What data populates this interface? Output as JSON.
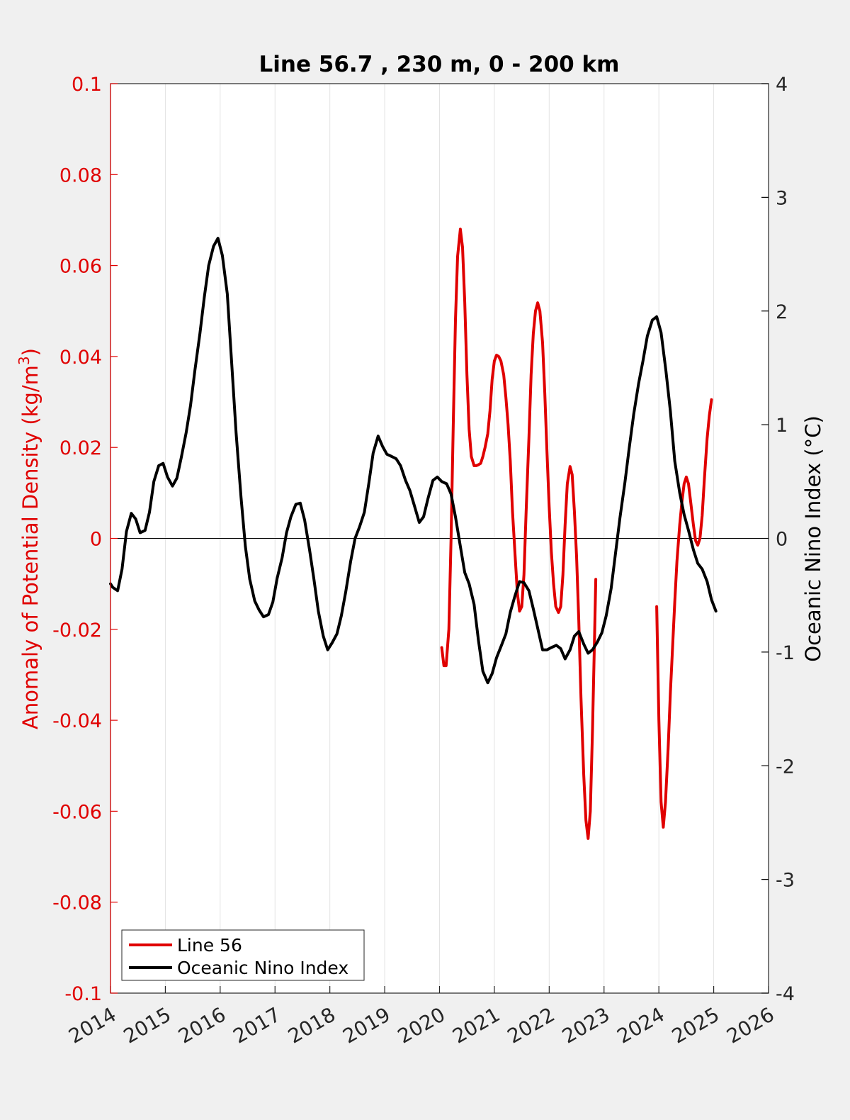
{
  "chart_data": {
    "type": "line",
    "title": "Line 56.7 , 230 m, 0 - 200 km",
    "xlabel": "",
    "ylabel_left": "Anomaly of Potential Density (kg/m",
    "ylabel_left_sup": "3",
    "ylabel_left_close": ")",
    "ylabel_right": "Oceanic Nino Index (°C)",
    "xlim": [
      2014,
      2026
    ],
    "ylim_left": [
      -0.1,
      0.1
    ],
    "ylim_right": [
      -4,
      4
    ],
    "x_ticks": [
      "2014",
      "2015",
      "2016",
      "2017",
      "2018",
      "2019",
      "2020",
      "2021",
      "2022",
      "2023",
      "2024",
      "2025",
      "2026"
    ],
    "y_left_ticks": [
      "-0.1",
      "-0.08",
      "-0.06",
      "-0.04",
      "-0.02",
      "0",
      "0.02",
      "0.04",
      "0.06",
      "0.08",
      "0.1"
    ],
    "y_right_ticks": [
      "-4",
      "-3",
      "-2",
      "-1",
      "0",
      "1",
      "2",
      "3",
      "4"
    ],
    "grid": "vertical",
    "zero_line": true,
    "legend_position": "bottom-left",
    "colors": {
      "line56": "#e00000",
      "oni": "#000000",
      "left_axis": "#e00000",
      "right_axis": "#000000"
    },
    "series": [
      {
        "name": "Line 56",
        "axis": "left",
        "color": "#e00000",
        "segments": [
          [
            [
              2020.04,
              -0.024
            ],
            [
              2020.08,
              -0.028
            ],
            [
              2020.12,
              -0.028
            ],
            [
              2020.17,
              -0.02
            ],
            [
              2020.21,
              0.0
            ],
            [
              2020.25,
              0.025
            ],
            [
              2020.29,
              0.048
            ],
            [
              2020.33,
              0.062
            ],
            [
              2020.38,
              0.068
            ],
            [
              2020.42,
              0.064
            ],
            [
              2020.46,
              0.052
            ],
            [
              2020.5,
              0.036
            ],
            [
              2020.54,
              0.024
            ],
            [
              2020.58,
              0.018
            ],
            [
              2020.63,
              0.016
            ],
            [
              2020.67,
              0.016
            ],
            [
              2020.71,
              0.0162
            ],
            [
              2020.75,
              0.0165
            ],
            [
              2020.79,
              0.018
            ],
            [
              2020.83,
              0.02
            ],
            [
              2020.88,
              0.023
            ],
            [
              2020.92,
              0.028
            ],
            [
              2020.96,
              0.035
            ],
            [
              2021.0,
              0.039
            ],
            [
              2021.04,
              0.0403
            ],
            [
              2021.08,
              0.04
            ],
            [
              2021.12,
              0.039
            ],
            [
              2021.17,
              0.036
            ],
            [
              2021.21,
              0.031
            ],
            [
              2021.25,
              0.025
            ],
            [
              2021.29,
              0.017
            ],
            [
              2021.33,
              0.006
            ],
            [
              2021.38,
              -0.004
            ],
            [
              2021.42,
              -0.012
            ],
            [
              2021.46,
              -0.016
            ],
            [
              2021.5,
              -0.015
            ],
            [
              2021.54,
              -0.008
            ],
            [
              2021.58,
              0.006
            ],
            [
              2021.63,
              0.022
            ],
            [
              2021.67,
              0.036
            ],
            [
              2021.71,
              0.045
            ],
            [
              2021.75,
              0.05
            ],
            [
              2021.79,
              0.0518
            ],
            [
              2021.83,
              0.05
            ],
            [
              2021.88,
              0.043
            ],
            [
              2021.92,
              0.032
            ],
            [
              2021.96,
              0.019
            ],
            [
              2022.0,
              0.007
            ],
            [
              2022.04,
              -0.003
            ],
            [
              2022.08,
              -0.01
            ],
            [
              2022.12,
              -0.015
            ],
            [
              2022.17,
              -0.0163
            ],
            [
              2022.21,
              -0.015
            ],
            [
              2022.25,
              -0.008
            ],
            [
              2022.29,
              0.003
            ],
            [
              2022.33,
              0.012
            ],
            [
              2022.38,
              0.0158
            ],
            [
              2022.42,
              0.014
            ],
            [
              2022.46,
              0.006
            ],
            [
              2022.5,
              -0.004
            ],
            [
              2022.54,
              -0.018
            ],
            [
              2022.58,
              -0.035
            ],
            [
              2022.63,
              -0.052
            ],
            [
              2022.67,
              -0.062
            ],
            [
              2022.71,
              -0.066
            ],
            [
              2022.75,
              -0.06
            ],
            [
              2022.79,
              -0.042
            ],
            [
              2022.83,
              -0.02
            ],
            [
              2022.85,
              -0.009
            ]
          ],
          [
            [
              2023.96,
              -0.015
            ],
            [
              2024.0,
              -0.04
            ],
            [
              2024.04,
              -0.058
            ],
            [
              2024.08,
              -0.0635
            ],
            [
              2024.12,
              -0.058
            ],
            [
              2024.17,
              -0.046
            ],
            [
              2024.21,
              -0.034
            ],
            [
              2024.25,
              -0.024
            ],
            [
              2024.29,
              -0.014
            ],
            [
              2024.33,
              -0.005
            ],
            [
              2024.38,
              0.003
            ],
            [
              2024.42,
              0.008
            ],
            [
              2024.46,
              0.012
            ],
            [
              2024.5,
              0.0135
            ],
            [
              2024.54,
              0.012
            ],
            [
              2024.58,
              0.008
            ],
            [
              2024.63,
              0.003
            ],
            [
              2024.67,
              -0.0005
            ],
            [
              2024.71,
              -0.0015
            ],
            [
              2024.75,
              0.0
            ],
            [
              2024.79,
              0.005
            ],
            [
              2024.83,
              0.013
            ],
            [
              2024.88,
              0.022
            ],
            [
              2024.92,
              0.027
            ],
            [
              2024.96,
              0.0305
            ]
          ]
        ]
      },
      {
        "name": "Oceanic Nino Index",
        "axis": "right",
        "color": "#000000",
        "points": [
          [
            2014.0,
            -0.4
          ],
          [
            2014.04,
            -0.43
          ],
          [
            2014.13,
            -0.46
          ],
          [
            2014.21,
            -0.27
          ],
          [
            2014.29,
            0.06
          ],
          [
            2014.38,
            0.22
          ],
          [
            2014.46,
            0.17
          ],
          [
            2014.54,
            0.05
          ],
          [
            2014.63,
            0.07
          ],
          [
            2014.71,
            0.23
          ],
          [
            2014.79,
            0.5
          ],
          [
            2014.88,
            0.64
          ],
          [
            2014.96,
            0.66
          ],
          [
            2015.04,
            0.54
          ],
          [
            2015.13,
            0.46
          ],
          [
            2015.21,
            0.53
          ],
          [
            2015.29,
            0.71
          ],
          [
            2015.38,
            0.93
          ],
          [
            2015.46,
            1.17
          ],
          [
            2015.54,
            1.48
          ],
          [
            2015.63,
            1.8
          ],
          [
            2015.71,
            2.12
          ],
          [
            2015.79,
            2.4
          ],
          [
            2015.88,
            2.57
          ],
          [
            2015.96,
            2.64
          ],
          [
            2016.04,
            2.49
          ],
          [
            2016.13,
            2.15
          ],
          [
            2016.21,
            1.54
          ],
          [
            2016.29,
            0.93
          ],
          [
            2016.38,
            0.36
          ],
          [
            2016.46,
            -0.07
          ],
          [
            2016.54,
            -0.36
          ],
          [
            2016.63,
            -0.55
          ],
          [
            2016.71,
            -0.63
          ],
          [
            2016.79,
            -0.69
          ],
          [
            2016.88,
            -0.67
          ],
          [
            2016.96,
            -0.56
          ],
          [
            2017.04,
            -0.35
          ],
          [
            2017.13,
            -0.17
          ],
          [
            2017.21,
            0.05
          ],
          [
            2017.29,
            0.19
          ],
          [
            2017.38,
            0.3
          ],
          [
            2017.46,
            0.31
          ],
          [
            2017.54,
            0.16
          ],
          [
            2017.63,
            -0.1
          ],
          [
            2017.71,
            -0.36
          ],
          [
            2017.79,
            -0.64
          ],
          [
            2017.88,
            -0.86
          ],
          [
            2017.96,
            -0.98
          ],
          [
            2018.04,
            -0.92
          ],
          [
            2018.13,
            -0.84
          ],
          [
            2018.21,
            -0.68
          ],
          [
            2018.29,
            -0.47
          ],
          [
            2018.38,
            -0.2
          ],
          [
            2018.46,
            0.0
          ],
          [
            2018.54,
            0.1
          ],
          [
            2018.63,
            0.23
          ],
          [
            2018.71,
            0.48
          ],
          [
            2018.79,
            0.75
          ],
          [
            2018.88,
            0.9
          ],
          [
            2018.96,
            0.81
          ],
          [
            2019.04,
            0.74
          ],
          [
            2019.13,
            0.72
          ],
          [
            2019.21,
            0.7
          ],
          [
            2019.29,
            0.64
          ],
          [
            2019.38,
            0.51
          ],
          [
            2019.46,
            0.42
          ],
          [
            2019.54,
            0.29
          ],
          [
            2019.63,
            0.14
          ],
          [
            2019.71,
            0.19
          ],
          [
            2019.79,
            0.35
          ],
          [
            2019.88,
            0.51
          ],
          [
            2019.96,
            0.54
          ],
          [
            2020.04,
            0.5
          ],
          [
            2020.13,
            0.48
          ],
          [
            2020.21,
            0.39
          ],
          [
            2020.29,
            0.19
          ],
          [
            2020.38,
            -0.07
          ],
          [
            2020.46,
            -0.3
          ],
          [
            2020.54,
            -0.4
          ],
          [
            2020.63,
            -0.58
          ],
          [
            2020.71,
            -0.9
          ],
          [
            2020.79,
            -1.17
          ],
          [
            2020.88,
            -1.27
          ],
          [
            2020.96,
            -1.19
          ],
          [
            2021.04,
            -1.05
          ],
          [
            2021.13,
            -0.94
          ],
          [
            2021.21,
            -0.84
          ],
          [
            2021.29,
            -0.65
          ],
          [
            2021.38,
            -0.5
          ],
          [
            2021.46,
            -0.38
          ],
          [
            2021.54,
            -0.39
          ],
          [
            2021.63,
            -0.46
          ],
          [
            2021.71,
            -0.62
          ],
          [
            2021.79,
            -0.79
          ],
          [
            2021.88,
            -0.98
          ],
          [
            2021.96,
            -0.98
          ],
          [
            2022.04,
            -0.96
          ],
          [
            2022.13,
            -0.94
          ],
          [
            2022.21,
            -0.97
          ],
          [
            2022.29,
            -1.06
          ],
          [
            2022.38,
            -0.98
          ],
          [
            2022.46,
            -0.86
          ],
          [
            2022.54,
            -0.82
          ],
          [
            2022.63,
            -0.93
          ],
          [
            2022.71,
            -1.01
          ],
          [
            2022.79,
            -0.98
          ],
          [
            2022.88,
            -0.91
          ],
          [
            2022.96,
            -0.83
          ],
          [
            2023.04,
            -0.68
          ],
          [
            2023.13,
            -0.44
          ],
          [
            2023.21,
            -0.13
          ],
          [
            2023.29,
            0.18
          ],
          [
            2023.38,
            0.49
          ],
          [
            2023.46,
            0.8
          ],
          [
            2023.54,
            1.09
          ],
          [
            2023.63,
            1.36
          ],
          [
            2023.71,
            1.56
          ],
          [
            2023.79,
            1.78
          ],
          [
            2023.88,
            1.92
          ],
          [
            2023.96,
            1.95
          ],
          [
            2024.04,
            1.81
          ],
          [
            2024.13,
            1.47
          ],
          [
            2024.21,
            1.12
          ],
          [
            2024.29,
            0.68
          ],
          [
            2024.38,
            0.4
          ],
          [
            2024.46,
            0.21
          ],
          [
            2024.54,
            0.07
          ],
          [
            2024.63,
            -0.1
          ],
          [
            2024.71,
            -0.22
          ],
          [
            2024.79,
            -0.27
          ],
          [
            2024.88,
            -0.38
          ],
          [
            2024.96,
            -0.54
          ],
          [
            2025.04,
            -0.64
          ]
        ]
      }
    ]
  }
}
